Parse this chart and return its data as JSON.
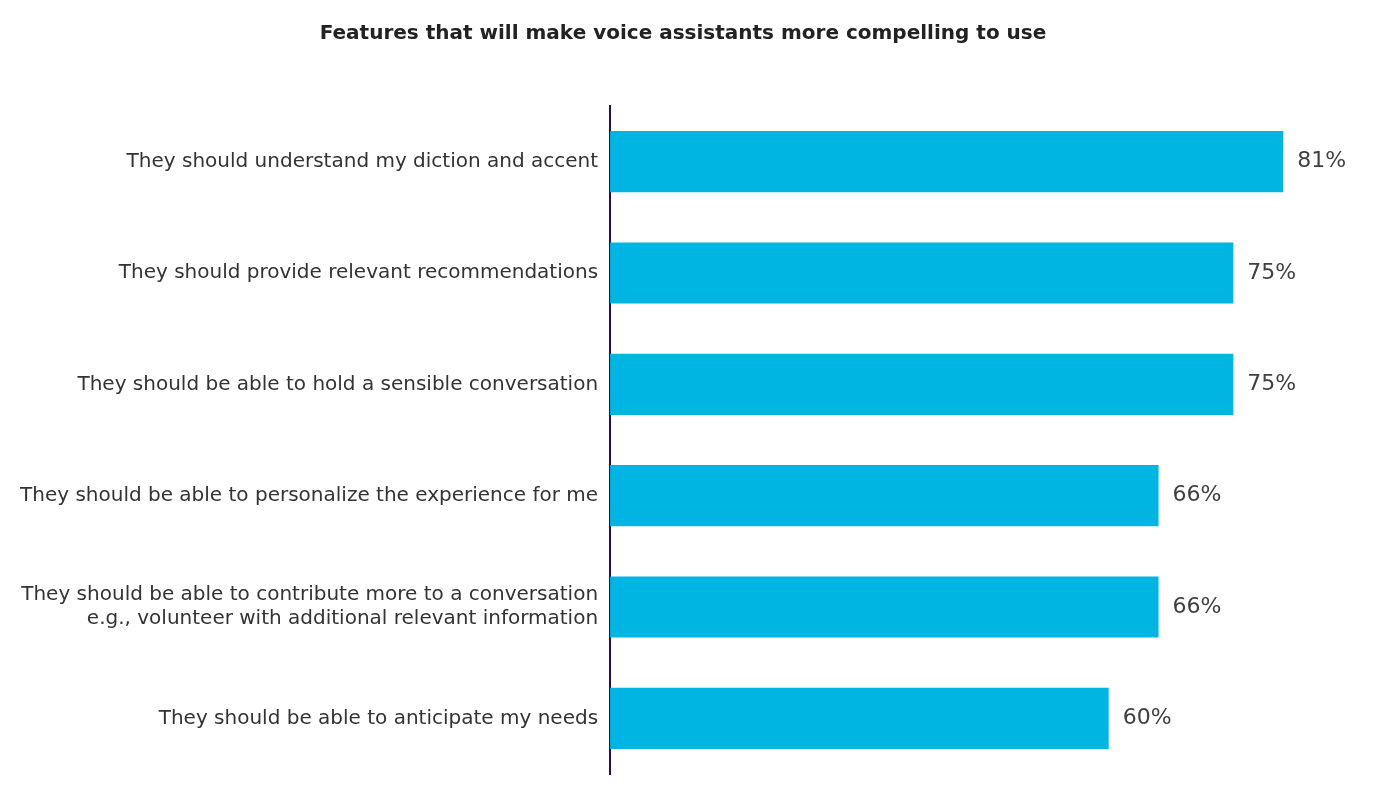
{
  "chart_data": {
    "type": "bar",
    "orientation": "horizontal",
    "title": "Features that will make voice assistants more compelling to use",
    "categories": [
      "They should understand my diction and accent",
      "They should provide relevant recommendations",
      "They should be able to hold a sensible conversation",
      "They should be able to personalize the experience for me",
      "They should be able to contribute more to a conversation\ne.g., volunteer with additional relevant information",
      "They should be able to anticipate my needs"
    ],
    "values": [
      81,
      75,
      75,
      66,
      66,
      60
    ],
    "value_labels": [
      "81%",
      "75%",
      "75%",
      "66%",
      "66%",
      "60%"
    ],
    "color": "#00b5e2",
    "tick_labels": "y",
    "grid": false,
    "legend": false
  }
}
